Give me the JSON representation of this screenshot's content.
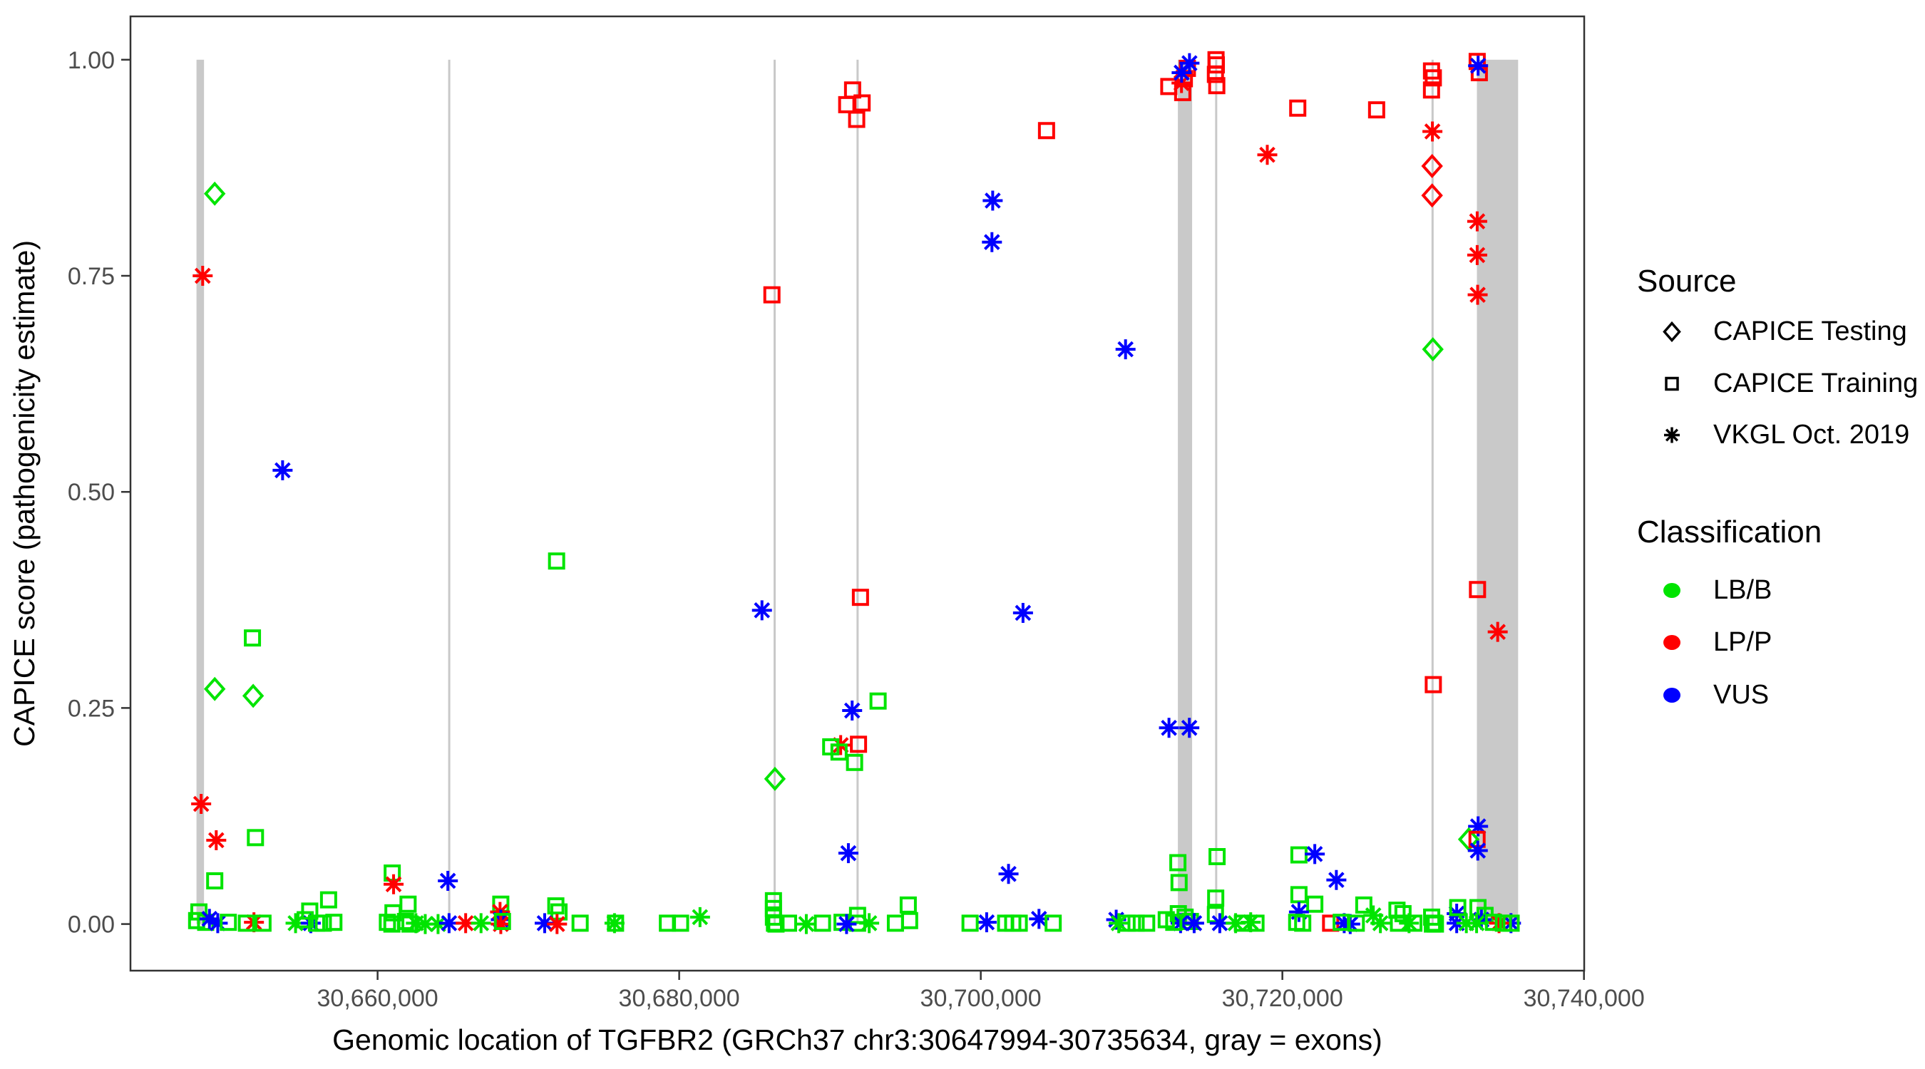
{
  "chart_data": {
    "type": "scatter",
    "xlabel": "Genomic location of TGFBR2 (GRCh37 chr3:30647994-30735634, gray = exons)",
    "ylabel": "CAPICE score (pathogenicity estimate)",
    "xlim": [
      30643612,
      30740016
    ],
    "ylim": [
      0,
      1
    ],
    "grid": "off",
    "x_ticks": [
      30660000,
      30680000,
      30700000,
      30720000,
      30740000
    ],
    "x_tick_labels": [
      "30,660,000",
      "30,680,000",
      "30,700,000",
      "30,720,000",
      "30,740,000"
    ],
    "y_ticks": [
      0,
      0.25,
      0.5,
      0.75,
      1
    ],
    "y_tick_labels": [
      "0.00",
      "0.25",
      "0.50",
      "0.75",
      "1.00"
    ],
    "exon_color": "#C9C9C9",
    "exons": [
      [
        30647990,
        30648490
      ],
      [
        30664680,
        30664800
      ],
      [
        30686260,
        30686380
      ],
      [
        30691760,
        30691880
      ],
      [
        30713070,
        30714015
      ],
      [
        30715540,
        30715660
      ],
      [
        30729890,
        30730010
      ],
      [
        30732900,
        30735634
      ]
    ],
    "legend": {
      "position": "right",
      "source_title": "Source",
      "source_items": [
        {
          "shape": "diamond",
          "label": "CAPICE Testing"
        },
        {
          "shape": "square",
          "label": "CAPICE Training"
        },
        {
          "shape": "asterisk",
          "label": "VKGL Oct. 2019"
        }
      ],
      "classification_title": "Classification",
      "classification_items": [
        {
          "key": "LB",
          "label": "LB/B",
          "color": "#00E400"
        },
        {
          "key": "LP",
          "label": "LP/P",
          "color": "#FF0000"
        },
        {
          "key": "VUS",
          "label": "VUS",
          "color": "#0000FF"
        }
      ]
    },
    "sources": {
      "testing": {
        "label": "CAPICE Testing",
        "shape": "diamond"
      },
      "training": {
        "label": "CAPICE Training",
        "shape": "square"
      },
      "vkgl": {
        "label": "VKGL Oct. 2019",
        "shape": "asterisk"
      }
    },
    "classifications": {
      "LB": {
        "label": "LB/B",
        "color": "#00E400"
      },
      "LP": {
        "label": "LP/P",
        "color": "#FF0000"
      },
      "VUS": {
        "label": "VUS",
        "color": "#0000FF"
      }
    },
    "points": [
      [
        30649200,
        0.845,
        "testing",
        "LB"
      ],
      [
        30648400,
        0.75,
        "vkgl",
        "LP"
      ],
      [
        30653700,
        0.525,
        "vkgl",
        "VUS"
      ],
      [
        30651700,
        0.331,
        "training",
        "LB"
      ],
      [
        30649200,
        0.272,
        "testing",
        "LB"
      ],
      [
        30651750,
        0.264,
        "testing",
        "LB"
      ],
      [
        30648300,
        0.139,
        "vkgl",
        "LP"
      ],
      [
        30649300,
        0.097,
        "vkgl",
        "LP"
      ],
      [
        30651900,
        0.1,
        "training",
        "LB"
      ],
      [
        30649200,
        0.05,
        "training",
        "LB"
      ],
      [
        30648150,
        0.014,
        "training",
        "LB"
      ],
      [
        30648000,
        0.004,
        "training",
        "LB"
      ],
      [
        30648600,
        0.002,
        "training",
        "LB"
      ],
      [
        30648850,
        0.006,
        "vkgl",
        "VUS"
      ],
      [
        30649400,
        0.001,
        "vkgl",
        "VUS"
      ],
      [
        30650100,
        0.002,
        "training",
        "LB"
      ],
      [
        30651800,
        0.002,
        "vkgl",
        "LP"
      ],
      [
        30651300,
        0.001,
        "training",
        "LB"
      ],
      [
        30652400,
        0.001,
        "training",
        "LB"
      ],
      [
        30654560,
        0.001,
        "vkgl",
        "LB"
      ],
      [
        30655570,
        0.001,
        "vkgl",
        "VUS"
      ],
      [
        30655200,
        0.005,
        "training",
        "LB"
      ],
      [
        30655500,
        0.015,
        "training",
        "LB"
      ],
      [
        30655950,
        0.001,
        "training",
        "LB"
      ],
      [
        30656750,
        0.028,
        "training",
        "LB"
      ],
      [
        30656400,
        0.001,
        "training",
        "LB"
      ],
      [
        30657100,
        0.002,
        "training",
        "LB"
      ],
      [
        30660970,
        0.059,
        "training",
        "LB"
      ],
      [
        30661060,
        0.046,
        "vkgl",
        "LP"
      ],
      [
        30661020,
        0.013,
        "training",
        "LB"
      ],
      [
        30660650,
        0.002,
        "training",
        "LB"
      ],
      [
        30660950,
        0.0,
        "training",
        "LB"
      ],
      [
        30662020,
        0.023,
        "training",
        "LB"
      ],
      [
        30661850,
        0.003,
        "training",
        "LB"
      ],
      [
        30662150,
        0.0,
        "training",
        "LB"
      ],
      [
        30662540,
        0.001,
        "vkgl",
        "LB"
      ],
      [
        30663160,
        0.0,
        "vkgl",
        "LB"
      ],
      [
        30664010,
        0.0,
        "vkgl",
        "LB"
      ],
      [
        30664660,
        0.05,
        "vkgl",
        "VUS"
      ],
      [
        30664740,
        0.001,
        "vkgl",
        "VUS"
      ],
      [
        30665840,
        0.001,
        "vkgl",
        "LP"
      ],
      [
        30666860,
        0.001,
        "vkgl",
        "LB"
      ],
      [
        30668170,
        0.023,
        "training",
        "LB"
      ],
      [
        30668120,
        0.014,
        "vkgl",
        "LP"
      ],
      [
        30668170,
        0.005,
        "vkgl",
        "VUS"
      ],
      [
        30668170,
        0.0,
        "vkgl",
        "LP"
      ],
      [
        30668280,
        0.003,
        "training",
        "LB"
      ],
      [
        30671870,
        0.42,
        "training",
        "LB"
      ],
      [
        30671820,
        0.021,
        "training",
        "LB"
      ],
      [
        30672030,
        0.014,
        "training",
        "LB"
      ],
      [
        30671080,
        0.001,
        "vkgl",
        "VUS"
      ],
      [
        30671900,
        0.0,
        "vkgl",
        "LP"
      ],
      [
        30673430,
        0.001,
        "training",
        "LB"
      ],
      [
        30675710,
        0.001,
        "vkgl",
        "LB"
      ],
      [
        30675780,
        0.001,
        "training",
        "LB"
      ],
      [
        30679220,
        0.001,
        "training",
        "LB"
      ],
      [
        30680090,
        0.001,
        "training",
        "LB"
      ],
      [
        30681380,
        0.008,
        "vkgl",
        "LB"
      ],
      [
        30686150,
        0.728,
        "training",
        "LP"
      ],
      [
        30685490,
        0.363,
        "vkgl",
        "VUS"
      ],
      [
        30686350,
        0.168,
        "testing",
        "LB"
      ],
      [
        30686250,
        0.027,
        "training",
        "LB"
      ],
      [
        30686250,
        0.018,
        "training",
        "LB"
      ],
      [
        30686250,
        0.008,
        "training",
        "LB"
      ],
      [
        30686320,
        0.001,
        "training",
        "LB"
      ],
      [
        30686420,
        0.0,
        "training",
        "LB"
      ],
      [
        30687250,
        0.001,
        "training",
        "LB"
      ],
      [
        30688430,
        0.0,
        "vkgl",
        "LB"
      ],
      [
        30691500,
        0.965,
        "training",
        "LP"
      ],
      [
        30692130,
        0.95,
        "training",
        "LP"
      ],
      [
        30691110,
        0.948,
        "training",
        "LP"
      ],
      [
        30691770,
        0.931,
        "training",
        "LP"
      ],
      [
        30692020,
        0.378,
        "training",
        "LP"
      ],
      [
        30693190,
        0.258,
        "training",
        "LB"
      ],
      [
        30691470,
        0.247,
        "vkgl",
        "VUS"
      ],
      [
        30690710,
        0.207,
        "vkgl",
        "LP"
      ],
      [
        30691890,
        0.208,
        "training",
        "LP"
      ],
      [
        30691630,
        0.187,
        "training",
        "LB"
      ],
      [
        30690050,
        0.205,
        "training",
        "LB"
      ],
      [
        30690600,
        0.199,
        "training",
        "LB"
      ],
      [
        30691220,
        0.082,
        "vkgl",
        "VUS"
      ],
      [
        30689500,
        0.001,
        "training",
        "LB"
      ],
      [
        30690800,
        0.002,
        "training",
        "LB"
      ],
      [
        30691830,
        0.01,
        "training",
        "LB"
      ],
      [
        30691830,
        0.001,
        "training",
        "LB"
      ],
      [
        30692600,
        0.001,
        "vkgl",
        "LB"
      ],
      [
        30691100,
        0.0,
        "vkgl",
        "VUS"
      ],
      [
        30694340,
        0.001,
        "training",
        "LB"
      ],
      [
        30695280,
        0.004,
        "training",
        "LB"
      ],
      [
        30695190,
        0.022,
        "training",
        "LB"
      ],
      [
        30704360,
        0.918,
        "training",
        "LP"
      ],
      [
        30700790,
        0.837,
        "vkgl",
        "VUS"
      ],
      [
        30700740,
        0.789,
        "vkgl",
        "VUS"
      ],
      [
        30702800,
        0.36,
        "vkgl",
        "VUS"
      ],
      [
        30701840,
        0.058,
        "vkgl",
        "VUS"
      ],
      [
        30703860,
        0.006,
        "vkgl",
        "VUS"
      ],
      [
        30700390,
        0.002,
        "vkgl",
        "VUS"
      ],
      [
        30699290,
        0.001,
        "training",
        "LB"
      ],
      [
        30701650,
        0.001,
        "training",
        "LB"
      ],
      [
        30702120,
        0.001,
        "training",
        "LB"
      ],
      [
        30702550,
        0.001,
        "training",
        "LB"
      ],
      [
        30704800,
        0.001,
        "training",
        "LB"
      ],
      [
        30709600,
        0.665,
        "vkgl",
        "VUS"
      ],
      [
        30708980,
        0.005,
        "vkgl",
        "VUS"
      ],
      [
        30709150,
        0.001,
        "vkgl",
        "LB"
      ],
      [
        30709700,
        0.001,
        "training",
        "LB"
      ],
      [
        30710300,
        0.001,
        "training",
        "LB"
      ],
      [
        30711000,
        0.001,
        "training",
        "LB"
      ],
      [
        30713700,
        0.99,
        "training",
        "LP"
      ],
      [
        30713310,
        0.973,
        "vkgl",
        "LP"
      ],
      [
        30712470,
        0.969,
        "training",
        "LP"
      ],
      [
        30713500,
        0.978,
        "training",
        "LP"
      ],
      [
        30713390,
        0.962,
        "training",
        "LP"
      ],
      [
        30713840,
        0.996,
        "vkgl",
        "VUS"
      ],
      [
        30713320,
        0.985,
        "vkgl",
        "VUS"
      ],
      [
        30712480,
        0.227,
        "vkgl",
        "VUS"
      ],
      [
        30713830,
        0.227,
        "vkgl",
        "VUS"
      ],
      [
        30713070,
        0.071,
        "training",
        "LB"
      ],
      [
        30713150,
        0.048,
        "training",
        "LB"
      ],
      [
        30713100,
        0.012,
        "training",
        "LB"
      ],
      [
        30713550,
        0.008,
        "training",
        "LB"
      ],
      [
        30713900,
        0.003,
        "training",
        "LB"
      ],
      [
        30713250,
        0.001,
        "vkgl",
        "VUS"
      ],
      [
        30714150,
        0.001,
        "vkgl",
        "VUS"
      ],
      [
        30712800,
        0.002,
        "training",
        "LB"
      ],
      [
        30712300,
        0.005,
        "training",
        "LB"
      ],
      [
        30715600,
        1.0,
        "training",
        "LP"
      ],
      [
        30715620,
        0.994,
        "training",
        "LP"
      ],
      [
        30715560,
        0.983,
        "training",
        "LP"
      ],
      [
        30715650,
        0.97,
        "training",
        "LP"
      ],
      [
        30715670,
        0.078,
        "training",
        "LB"
      ],
      [
        30715580,
        0.03,
        "training",
        "LB"
      ],
      [
        30715560,
        0.011,
        "training",
        "LB"
      ],
      [
        30715850,
        0.001,
        "vkgl",
        "VUS"
      ],
      [
        30716900,
        0.001,
        "vkgl",
        "LB"
      ],
      [
        30717900,
        0.002,
        "vkgl",
        "LB"
      ],
      [
        30717350,
        0.001,
        "training",
        "LB"
      ],
      [
        30718250,
        0.001,
        "training",
        "LB"
      ],
      [
        30719000,
        0.89,
        "vkgl",
        "LP"
      ],
      [
        30721020,
        0.944,
        "training",
        "LP"
      ],
      [
        30726250,
        0.942,
        "training",
        "LP"
      ],
      [
        30721100,
        0.08,
        "training",
        "LB"
      ],
      [
        30722150,
        0.081,
        "vkgl",
        "VUS"
      ],
      [
        30723580,
        0.051,
        "vkgl",
        "VUS"
      ],
      [
        30721100,
        0.034,
        "training",
        "LB"
      ],
      [
        30722150,
        0.023,
        "training",
        "LB"
      ],
      [
        30721100,
        0.014,
        "vkgl",
        "VUS"
      ],
      [
        30720950,
        0.002,
        "training",
        "LB"
      ],
      [
        30721350,
        0.001,
        "training",
        "LB"
      ],
      [
        30723200,
        0.001,
        "training",
        "LP"
      ],
      [
        30724100,
        0.001,
        "vkgl",
        "VUS"
      ],
      [
        30724500,
        0.0,
        "vkgl",
        "VUS"
      ],
      [
        30723900,
        0.002,
        "training",
        "LB"
      ],
      [
        30724900,
        0.001,
        "training",
        "LB"
      ],
      [
        30725400,
        0.022,
        "training",
        "LB"
      ],
      [
        30726030,
        0.01,
        "vkgl",
        "LB"
      ],
      [
        30726500,
        0.001,
        "vkgl",
        "LB"
      ],
      [
        30727600,
        0.016,
        "training",
        "LB"
      ],
      [
        30728000,
        0.012,
        "training",
        "LB"
      ],
      [
        30727700,
        0.001,
        "training",
        "LB"
      ],
      [
        30728400,
        0.001,
        "vkgl",
        "LB"
      ],
      [
        30729890,
        0.987,
        "training",
        "LP"
      ],
      [
        30730010,
        0.979,
        "training",
        "LP"
      ],
      [
        30729890,
        0.965,
        "training",
        "LP"
      ],
      [
        30729950,
        0.917,
        "vkgl",
        "LP"
      ],
      [
        30729930,
        0.877,
        "testing",
        "LP"
      ],
      [
        30729930,
        0.843,
        "testing",
        "LP"
      ],
      [
        30729980,
        0.665,
        "testing",
        "LB"
      ],
      [
        30730010,
        0.277,
        "training",
        "LP"
      ],
      [
        30729900,
        0.008,
        "training",
        "LB"
      ],
      [
        30730060,
        0.001,
        "training",
        "LB"
      ],
      [
        30729950,
        0.0,
        "training",
        "LB"
      ],
      [
        30728720,
        0.001,
        "training",
        "LB"
      ],
      [
        30730150,
        0.0,
        "training",
        "LB"
      ],
      [
        30732920,
        0.998,
        "training",
        "LP"
      ],
      [
        30733060,
        0.985,
        "training",
        "LP"
      ],
      [
        30732980,
        0.993,
        "vkgl",
        "VUS"
      ],
      [
        30732920,
        0.813,
        "vkgl",
        "LP"
      ],
      [
        30732920,
        0.774,
        "vkgl",
        "LP"
      ],
      [
        30732950,
        0.728,
        "vkgl",
        "LP"
      ],
      [
        30732940,
        0.387,
        "training",
        "LP"
      ],
      [
        30734280,
        0.338,
        "vkgl",
        "LP"
      ],
      [
        30732980,
        0.113,
        "vkgl",
        "VUS"
      ],
      [
        30732360,
        0.098,
        "testing",
        "LB"
      ],
      [
        30732910,
        0.098,
        "training",
        "LP"
      ],
      [
        30732960,
        0.085,
        "vkgl",
        "VUS"
      ],
      [
        30731560,
        0.012,
        "vkgl",
        "VUS"
      ],
      [
        30731560,
        0.001,
        "vkgl",
        "VUS"
      ],
      [
        30731630,
        0.019,
        "training",
        "LB"
      ],
      [
        30732970,
        0.019,
        "training",
        "LB"
      ],
      [
        30733440,
        0.01,
        "training",
        "LB"
      ],
      [
        30733200,
        0.005,
        "vkgl",
        "VUS"
      ],
      [
        30735160,
        0.001,
        "vkgl",
        "VUS"
      ],
      [
        30734370,
        0.001,
        "vkgl",
        "LP"
      ],
      [
        30732200,
        0.001,
        "vkgl",
        "LB"
      ],
      [
        30732880,
        0.001,
        "vkgl",
        "LB"
      ],
      [
        30735170,
        0.001,
        "training",
        "LB"
      ],
      [
        30734000,
        0.002,
        "training",
        "LB"
      ],
      [
        30734650,
        0.001,
        "training",
        "LB"
      ]
    ]
  }
}
